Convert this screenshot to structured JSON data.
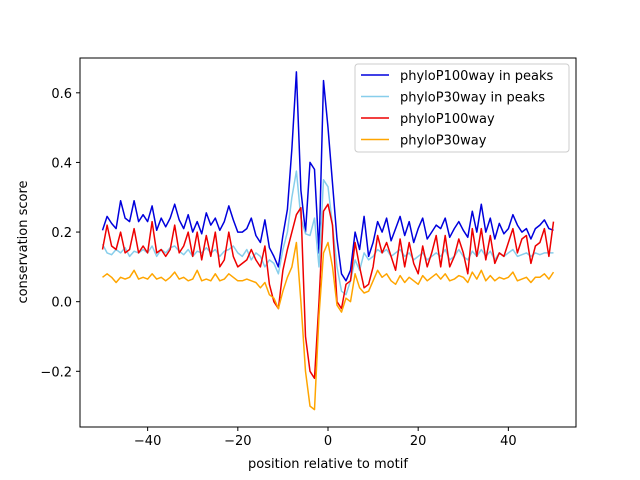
{
  "chart_data": {
    "type": "line",
    "title": "",
    "xlabel": "position relative to motif",
    "ylabel": "conservation score",
    "xlim": [
      -55,
      55
    ],
    "ylim": [
      -0.36,
      0.7
    ],
    "xticks": [
      -40,
      -20,
      0,
      20,
      40
    ],
    "yticks": [
      -0.2,
      0.0,
      0.2,
      0.4,
      0.6
    ],
    "xtick_labels": [
      "−40",
      "−20",
      "0",
      "20",
      "40"
    ],
    "ytick_labels": [
      "−0.2",
      "0.0",
      "0.2",
      "0.4",
      "0.6"
    ],
    "legend_position": "top-right",
    "x": [
      -50,
      -49,
      -48,
      -47,
      -46,
      -45,
      -44,
      -43,
      -42,
      -41,
      -40,
      -39,
      -38,
      -37,
      -36,
      -35,
      -34,
      -33,
      -32,
      -31,
      -30,
      -29,
      -28,
      -27,
      -26,
      -25,
      -24,
      -23,
      -22,
      -21,
      -20,
      -19,
      -18,
      -17,
      -16,
      -15,
      -14,
      -13,
      -12,
      -11,
      -10,
      -9,
      -8,
      -7,
      -6,
      -5,
      -4,
      -3,
      -2,
      -1,
      0,
      1,
      2,
      3,
      4,
      5,
      6,
      7,
      8,
      9,
      10,
      11,
      12,
      13,
      14,
      15,
      16,
      17,
      18,
      19,
      20,
      21,
      22,
      23,
      24,
      25,
      26,
      27,
      28,
      29,
      30,
      31,
      32,
      33,
      34,
      35,
      36,
      37,
      38,
      39,
      40,
      41,
      42,
      43,
      44,
      45,
      46,
      47,
      48,
      49,
      50
    ],
    "series": [
      {
        "name": "phyloP100way in peaks",
        "color": "#0000dd",
        "values": [
          0.205,
          0.245,
          0.225,
          0.21,
          0.29,
          0.24,
          0.23,
          0.29,
          0.23,
          0.25,
          0.23,
          0.275,
          0.205,
          0.24,
          0.215,
          0.24,
          0.28,
          0.235,
          0.21,
          0.25,
          0.2,
          0.23,
          0.195,
          0.255,
          0.22,
          0.24,
          0.205,
          0.23,
          0.275,
          0.235,
          0.2,
          0.2,
          0.21,
          0.24,
          0.19,
          0.17,
          0.235,
          0.155,
          0.13,
          0.1,
          0.19,
          0.265,
          0.44,
          0.66,
          0.32,
          0.2,
          0.4,
          0.38,
          0.14,
          0.635,
          0.5,
          0.34,
          0.18,
          0.08,
          0.06,
          0.09,
          0.2,
          0.15,
          0.245,
          0.13,
          0.17,
          0.23,
          0.2,
          0.24,
          0.175,
          0.21,
          0.245,
          0.19,
          0.23,
          0.17,
          0.21,
          0.24,
          0.18,
          0.2,
          0.22,
          0.21,
          0.24,
          0.185,
          0.21,
          0.23,
          0.205,
          0.185,
          0.26,
          0.2,
          0.28,
          0.2,
          0.24,
          0.18,
          0.225,
          0.195,
          0.21,
          0.25,
          0.22,
          0.2,
          0.21,
          0.18,
          0.21,
          0.22,
          0.235,
          0.21,
          0.205
        ]
      },
      {
        "name": "phyloP30way in peaks",
        "color": "#87ceeb",
        "values": [
          0.165,
          0.14,
          0.135,
          0.15,
          0.14,
          0.155,
          0.13,
          0.145,
          0.14,
          0.15,
          0.14,
          0.16,
          0.13,
          0.15,
          0.14,
          0.155,
          0.16,
          0.145,
          0.135,
          0.15,
          0.13,
          0.145,
          0.14,
          0.155,
          0.14,
          0.15,
          0.13,
          0.145,
          0.15,
          0.16,
          0.14,
          0.13,
          0.15,
          0.12,
          0.14,
          0.13,
          0.1,
          0.12,
          0.11,
          0.08,
          0.15,
          0.2,
          0.3,
          0.375,
          0.24,
          0.195,
          0.19,
          0.24,
          0.1,
          0.35,
          0.33,
          0.22,
          0.1,
          0.03,
          0.02,
          0.06,
          0.12,
          0.09,
          0.14,
          0.12,
          0.13,
          0.15,
          0.14,
          0.15,
          0.13,
          0.14,
          0.15,
          0.13,
          0.14,
          0.12,
          0.13,
          0.14,
          0.12,
          0.13,
          0.14,
          0.13,
          0.15,
          0.12,
          0.13,
          0.15,
          0.13,
          0.12,
          0.145,
          0.13,
          0.15,
          0.13,
          0.145,
          0.12,
          0.14,
          0.13,
          0.14,
          0.15,
          0.13,
          0.135,
          0.14,
          0.13,
          0.14,
          0.135,
          0.14,
          0.14,
          0.14
        ]
      },
      {
        "name": "phyloP100way",
        "color": "#ee0000",
        "values": [
          0.15,
          0.22,
          0.16,
          0.15,
          0.2,
          0.14,
          0.15,
          0.21,
          0.14,
          0.16,
          0.14,
          0.23,
          0.14,
          0.15,
          0.13,
          0.15,
          0.22,
          0.14,
          0.16,
          0.2,
          0.13,
          0.2,
          0.12,
          0.19,
          0.13,
          0.2,
          0.1,
          0.12,
          0.2,
          0.13,
          0.1,
          0.11,
          0.12,
          0.15,
          0.12,
          0.1,
          0.16,
          0.05,
          0.0,
          -0.02,
          0.09,
          0.15,
          0.2,
          0.25,
          0.27,
          -0.1,
          -0.2,
          -0.22,
          0.0,
          0.26,
          0.28,
          0.22,
          0.0,
          -0.02,
          0.05,
          0.06,
          0.17,
          0.1,
          0.04,
          0.05,
          0.1,
          0.19,
          0.14,
          0.17,
          0.13,
          0.09,
          0.18,
          0.1,
          0.17,
          0.11,
          0.08,
          0.16,
          0.1,
          0.14,
          0.19,
          0.1,
          0.19,
          0.1,
          0.13,
          0.18,
          0.14,
          0.08,
          0.21,
          0.13,
          0.21,
          0.12,
          0.19,
          0.11,
          0.14,
          0.13,
          0.17,
          0.21,
          0.14,
          0.18,
          0.19,
          0.11,
          0.16,
          0.17,
          0.21,
          0.13,
          0.23
        ]
      },
      {
        "name": "phyloP30way",
        "color": "#ffa500",
        "values": [
          0.07,
          0.08,
          0.07,
          0.055,
          0.07,
          0.065,
          0.07,
          0.09,
          0.065,
          0.07,
          0.065,
          0.08,
          0.065,
          0.07,
          0.06,
          0.07,
          0.085,
          0.065,
          0.07,
          0.06,
          0.065,
          0.09,
          0.06,
          0.065,
          0.06,
          0.08,
          0.06,
          0.065,
          0.08,
          0.07,
          0.06,
          0.06,
          0.065,
          0.06,
          0.055,
          0.04,
          0.055,
          0.02,
          0.01,
          -0.02,
          0.03,
          0.07,
          0.1,
          0.17,
          0.0,
          -0.2,
          -0.3,
          -0.31,
          -0.04,
          0.14,
          0.17,
          0.1,
          -0.01,
          -0.03,
          0.01,
          0.0,
          0.08,
          0.04,
          0.025,
          0.03,
          0.06,
          0.09,
          0.07,
          0.08,
          0.06,
          0.05,
          0.075,
          0.055,
          0.07,
          0.06,
          0.05,
          0.075,
          0.06,
          0.07,
          0.08,
          0.065,
          0.08,
          0.06,
          0.065,
          0.075,
          0.07,
          0.055,
          0.085,
          0.065,
          0.09,
          0.06,
          0.075,
          0.06,
          0.07,
          0.065,
          0.07,
          0.085,
          0.06,
          0.065,
          0.07,
          0.055,
          0.07,
          0.07,
          0.08,
          0.065,
          0.085
        ]
      }
    ]
  }
}
